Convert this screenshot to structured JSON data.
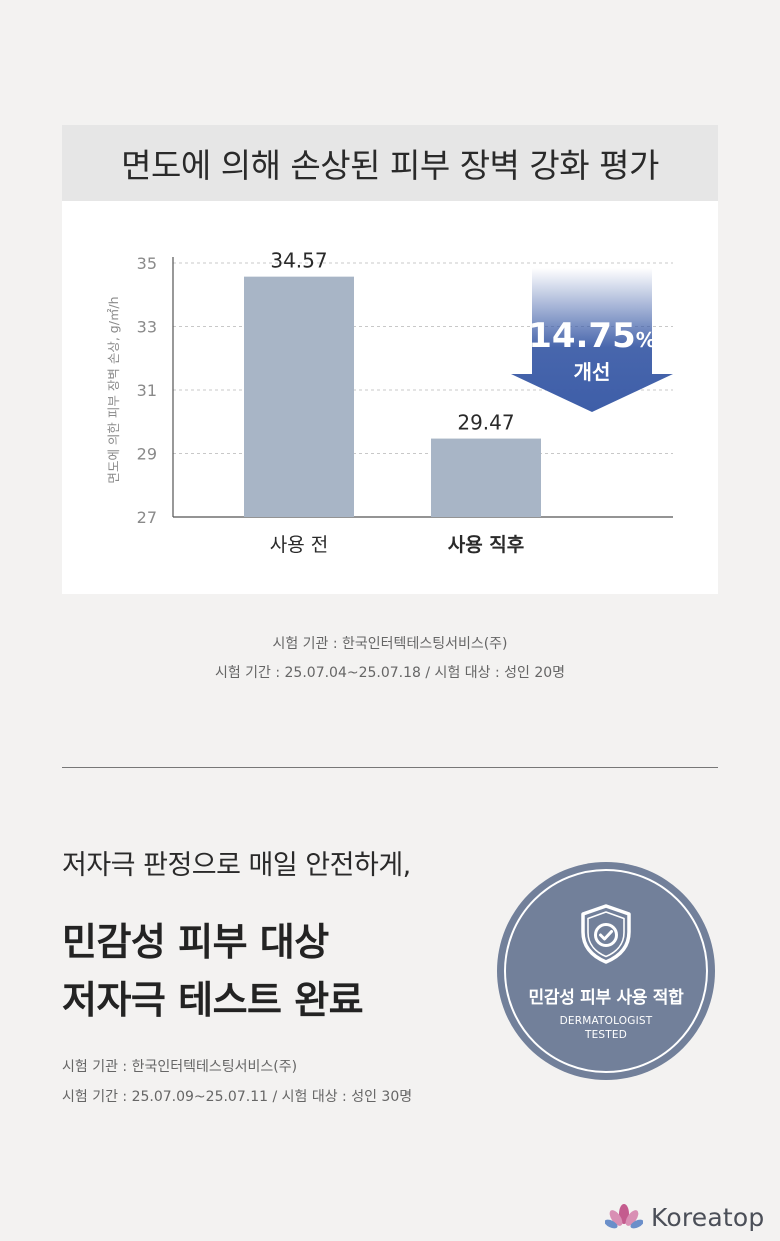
{
  "chart_data": {
    "type": "bar",
    "title": "면도에 의해 손상된 피부 장벽 강화 평가",
    "ylabel": "면도에 의한 피부 장벽 손상, g/㎡/h",
    "categories": [
      "사용 전",
      "사용 직후"
    ],
    "values": [
      34.57,
      29.47
    ],
    "data_labels": [
      "34.57",
      "29.47"
    ],
    "ylim": [
      27,
      35
    ],
    "yticks": [
      27,
      29,
      31,
      33,
      35
    ],
    "ytick_labels": [
      "27",
      "29",
      "31",
      "33",
      "35"
    ],
    "grid": true,
    "bar_color": "#a8b5c6",
    "annotation": {
      "value": "14.75",
      "unit": "%",
      "label": "개선",
      "color": "#3e5ea8"
    }
  },
  "test1": {
    "org": "시험 기관 : 한국인터텍테스팅서비스(주)",
    "period": "시험 기간 : 25.07.04~25.07.18 / 시험 대상 : 성인 20명"
  },
  "section2": {
    "subheadline": "저자극 판정으로 매일 안전하게,",
    "headline_line1": "민감성 피부 대상",
    "headline_line2": "저자극 테스트 완료",
    "org": "시험 기관 : 한국인터텍테스팅서비스(주)",
    "period": "시험 기간 : 25.07.09~25.07.11 / 시험 대상 : 성인 30명"
  },
  "badge": {
    "icon": "shield-check-icon",
    "title": "민감성 피부 사용 적합",
    "line1": "DERMATOLOGIST",
    "line2": "TESTED",
    "color": "#72809a"
  },
  "brand": {
    "name": "Koreatop",
    "icon": "lotus-icon"
  }
}
